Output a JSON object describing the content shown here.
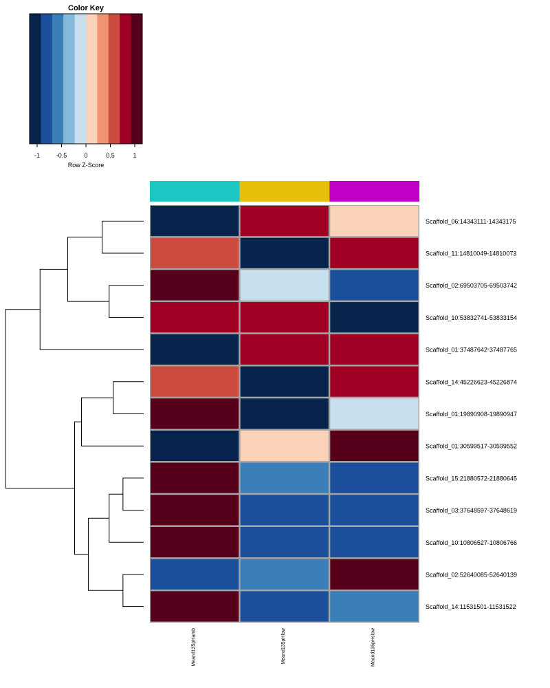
{
  "chart_data": {
    "type": "heatmap",
    "color_key": {
      "title": "Color Key",
      "xlabel": "Row Z-Score",
      "ticks": [
        "-1",
        "-0.5",
        "0",
        "0.5",
        "1"
      ],
      "tick_values": [
        -1,
        -0.5,
        0,
        0.5,
        1
      ],
      "range": [
        -1.155,
        1.155
      ],
      "colors": [
        "#08244D",
        "#1B4F9B",
        "#3A7FB7",
        "#84B9D9",
        "#C8DFEE",
        "#FBD1B8",
        "#EF9370",
        "#CB4B3E",
        "#A00024",
        "#56001C"
      ]
    },
    "columns": [
      {
        "name": "Meand135pHamb",
        "color": "#1BC6C3"
      },
      {
        "name": "Meand135pHlow",
        "color": "#E6BF0A"
      },
      {
        "name": "Meand135pHslow",
        "color": "#C000C6"
      }
    ],
    "rows": [
      "Scaffold_06:14343111-14343175",
      "Scaffold_11:14810049-14810073",
      "Scaffold_02:69503705-69503742",
      "Scaffold_10:53832741-53833154",
      "Scaffold_01:37487642-37487765",
      "Scaffold_14:45226623-45226874",
      "Scaffold_01:19890908-19890947",
      "Scaffold_01:30599517-30599552",
      "Scaffold_15:21880572-21880645",
      "Scaffold_03:37648597-37648619",
      "Scaffold_10:10806527-10806766",
      "Scaffold_02:52640085-52640139",
      "Scaffold_14:11531501-11531522"
    ],
    "values": [
      [
        -1.1,
        0.9,
        0.1
      ],
      [
        0.5,
        -1.1,
        0.9
      ],
      [
        1.1,
        -0.1,
        -0.9
      ],
      [
        0.7,
        0.7,
        -1.1
      ],
      [
        -1.1,
        0.7,
        0.7
      ],
      [
        0.5,
        -1.1,
        0.9
      ],
      [
        1.1,
        -1.1,
        -0.1
      ],
      [
        -1.1,
        0.1,
        1.1
      ],
      [
        1.1,
        -0.5,
        -0.9
      ],
      [
        1.1,
        -0.7,
        -0.7
      ],
      [
        1.1,
        -0.7,
        -0.7
      ],
      [
        -0.9,
        -0.5,
        1.1
      ],
      [
        1.1,
        -0.9,
        -0.5
      ]
    ],
    "dendrogram": {
      "merges": [
        [
          0,
          1,
          0.3
        ],
        [
          2,
          3,
          0.25
        ],
        [
          "n0",
          "n1",
          0.55
        ],
        [
          "n2",
          4,
          0.75
        ],
        [
          5,
          6,
          0.22
        ],
        [
          "n4",
          7,
          0.45
        ],
        [
          8,
          9,
          0.15
        ],
        [
          "n6",
          10,
          0.25
        ],
        [
          11,
          12,
          0.15
        ],
        [
          "n7",
          "n8",
          0.4
        ],
        [
          "n5",
          "n9",
          0.5
        ],
        [
          "n3",
          "n10",
          1.0
        ]
      ]
    }
  }
}
